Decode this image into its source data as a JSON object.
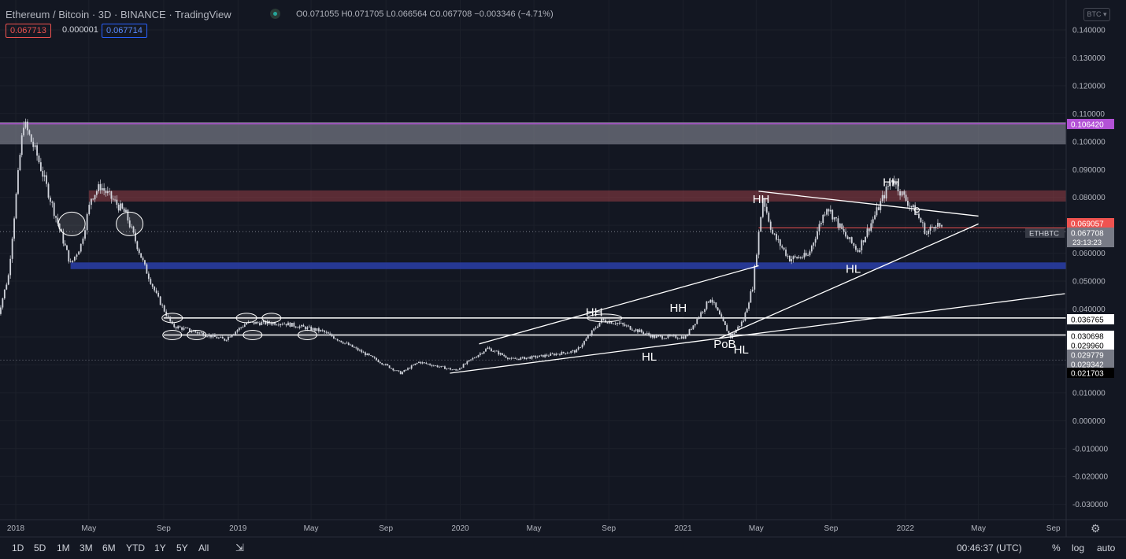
{
  "header": {
    "title": "Ethereum / Bitcoin · 3D · BINANCE · TradingView",
    "ohlc": "O0.071055 H0.071705 L0.066564 C0.067708 −0.003346 (−4.71%)",
    "bid": "0.067713",
    "spread": "0.000001",
    "ask": "0.067714",
    "currency_button": "BTC"
  },
  "colors": {
    "background": "#131722",
    "candles": "#d1d4dc",
    "supply_zone": "#b2474d",
    "demand_zone": "#2a3ea8",
    "top_zone": "#787b86",
    "purple_line": "#b352d6",
    "red_line": "#ef5350"
  },
  "chart_data": {
    "type": "line",
    "symbol": "ETHBTC",
    "ylim": [
      -0.035,
      0.145
    ],
    "y_ticks": [
      "0.140000",
      "0.130000",
      "0.120000",
      "0.110000",
      "0.100000",
      "0.090000",
      "0.080000",
      "0.070000",
      "0.060000",
      "0.050000",
      "0.040000",
      "0.030000",
      "0.020000",
      "0.010000",
      "0.000000",
      "-0.010000",
      "-0.020000",
      "-0.030000"
    ],
    "x_ticks": [
      "2018",
      "May",
      "Sep",
      "2019",
      "May",
      "Sep",
      "2020",
      "May",
      "Sep",
      "2021",
      "May",
      "Sep",
      "2022",
      "May",
      "Sep"
    ],
    "x_tick_dates": [
      "2018-01",
      "2018-05",
      "2018-09",
      "2019-01",
      "2019-05",
      "2019-09",
      "2020-01",
      "2020-05",
      "2020-09",
      "2021-01",
      "2021-05",
      "2021-09",
      "2022-01",
      "2022-05",
      "2022-09"
    ],
    "price_points": [
      {
        "x": "2017-12-01",
        "y": 0.036
      },
      {
        "x": "2017-12-20",
        "y": 0.052
      },
      {
        "x": "2018-01-08",
        "y": 0.095
      },
      {
        "x": "2018-01-14",
        "y": 0.107
      },
      {
        "x": "2018-02-05",
        "y": 0.095
      },
      {
        "x": "2018-03-05",
        "y": 0.075
      },
      {
        "x": "2018-04-01",
        "y": 0.056
      },
      {
        "x": "2018-04-18",
        "y": 0.063
      },
      {
        "x": "2018-05-05",
        "y": 0.08
      },
      {
        "x": "2018-05-20",
        "y": 0.084
      },
      {
        "x": "2018-06-10",
        "y": 0.079
      },
      {
        "x": "2018-07-01",
        "y": 0.074
      },
      {
        "x": "2018-08-01",
        "y": 0.055
      },
      {
        "x": "2018-08-20",
        "y": 0.045
      },
      {
        "x": "2018-09-15",
        "y": 0.034
      },
      {
        "x": "2018-10-20",
        "y": 0.032
      },
      {
        "x": "2018-12-10",
        "y": 0.029
      },
      {
        "x": "2019-01-15",
        "y": 0.035
      },
      {
        "x": "2019-03-15",
        "y": 0.035
      },
      {
        "x": "2019-05-20",
        "y": 0.032
      },
      {
        "x": "2019-07-20",
        "y": 0.025
      },
      {
        "x": "2019-09-25",
        "y": 0.017
      },
      {
        "x": "2019-10-25",
        "y": 0.021
      },
      {
        "x": "2019-12-25",
        "y": 0.018
      },
      {
        "x": "2020-02-15",
        "y": 0.026
      },
      {
        "x": "2020-03-25",
        "y": 0.022
      },
      {
        "x": "2020-05-10",
        "y": 0.023
      },
      {
        "x": "2020-07-10",
        "y": 0.025
      },
      {
        "x": "2020-08-20",
        "y": 0.036
      },
      {
        "x": "2020-09-15",
        "y": 0.035
      },
      {
        "x": "2020-11-15",
        "y": 0.03
      },
      {
        "x": "2021-01-05",
        "y": 0.03
      },
      {
        "x": "2021-02-15",
        "y": 0.044
      },
      {
        "x": "2021-03-20",
        "y": 0.03
      },
      {
        "x": "2021-04-10",
        "y": 0.036
      },
      {
        "x": "2021-04-25",
        "y": 0.048
      },
      {
        "x": "2021-05-12",
        "y": 0.08
      },
      {
        "x": "2021-05-28",
        "y": 0.067
      },
      {
        "x": "2021-06-25",
        "y": 0.058
      },
      {
        "x": "2021-07-25",
        "y": 0.059
      },
      {
        "x": "2021-08-25",
        "y": 0.077
      },
      {
        "x": "2021-09-25",
        "y": 0.066
      },
      {
        "x": "2021-10-15",
        "y": 0.061
      },
      {
        "x": "2021-11-15",
        "y": 0.075
      },
      {
        "x": "2021-12-10",
        "y": 0.087
      },
      {
        "x": "2021-12-30",
        "y": 0.08
      },
      {
        "x": "2022-01-20",
        "y": 0.074
      },
      {
        "x": "2022-02-05",
        "y": 0.067
      },
      {
        "x": "2022-02-20",
        "y": 0.071
      },
      {
        "x": "2022-03-05",
        "y": 0.0677
      }
    ],
    "price_labels": [
      {
        "value": "0.106420",
        "color": "#b352d6"
      },
      {
        "value": "0.069057",
        "color": "#ef5350"
      },
      {
        "value": "0.067708",
        "color": "#787b86"
      },
      {
        "value": "0.036765",
        "color": "#ffffff"
      },
      {
        "value": "0.030698",
        "color": "#ffffff"
      },
      {
        "value": "0.029960",
        "color": "#ffffff"
      },
      {
        "value": "0.029779",
        "color": "#787b86"
      },
      {
        "value": "0.029342",
        "color": "#787b86"
      },
      {
        "value": "0.021703",
        "color": "#000000"
      }
    ],
    "countdown": "23:13:23",
    "annotations": [
      {
        "text": "HH",
        "x": "2020-07-25",
        "y": 0.0375
      },
      {
        "text": "HH",
        "x": "2020-12-10",
        "y": 0.039
      },
      {
        "text": "HL",
        "x": "2020-10-25",
        "y": 0.0215
      },
      {
        "text": "PoB",
        "x": "2021-02-20",
        "y": 0.026
      },
      {
        "text": "HL",
        "x": "2021-03-25",
        "y": 0.024
      },
      {
        "text": "HH",
        "x": "2021-04-25",
        "y": 0.078
      },
      {
        "text": "HH",
        "x": "2021-11-25",
        "y": 0.084
      },
      {
        "text": "HL",
        "x": "2021-09-25",
        "y": 0.053
      }
    ]
  },
  "bottom_bar": {
    "timeframes": [
      "1D",
      "5D",
      "1M",
      "3M",
      "6M",
      "YTD",
      "1Y",
      "5Y",
      "All"
    ],
    "clock": "00:46:37 (UTC)",
    "percent": "%",
    "log": "log",
    "auto": "auto"
  }
}
